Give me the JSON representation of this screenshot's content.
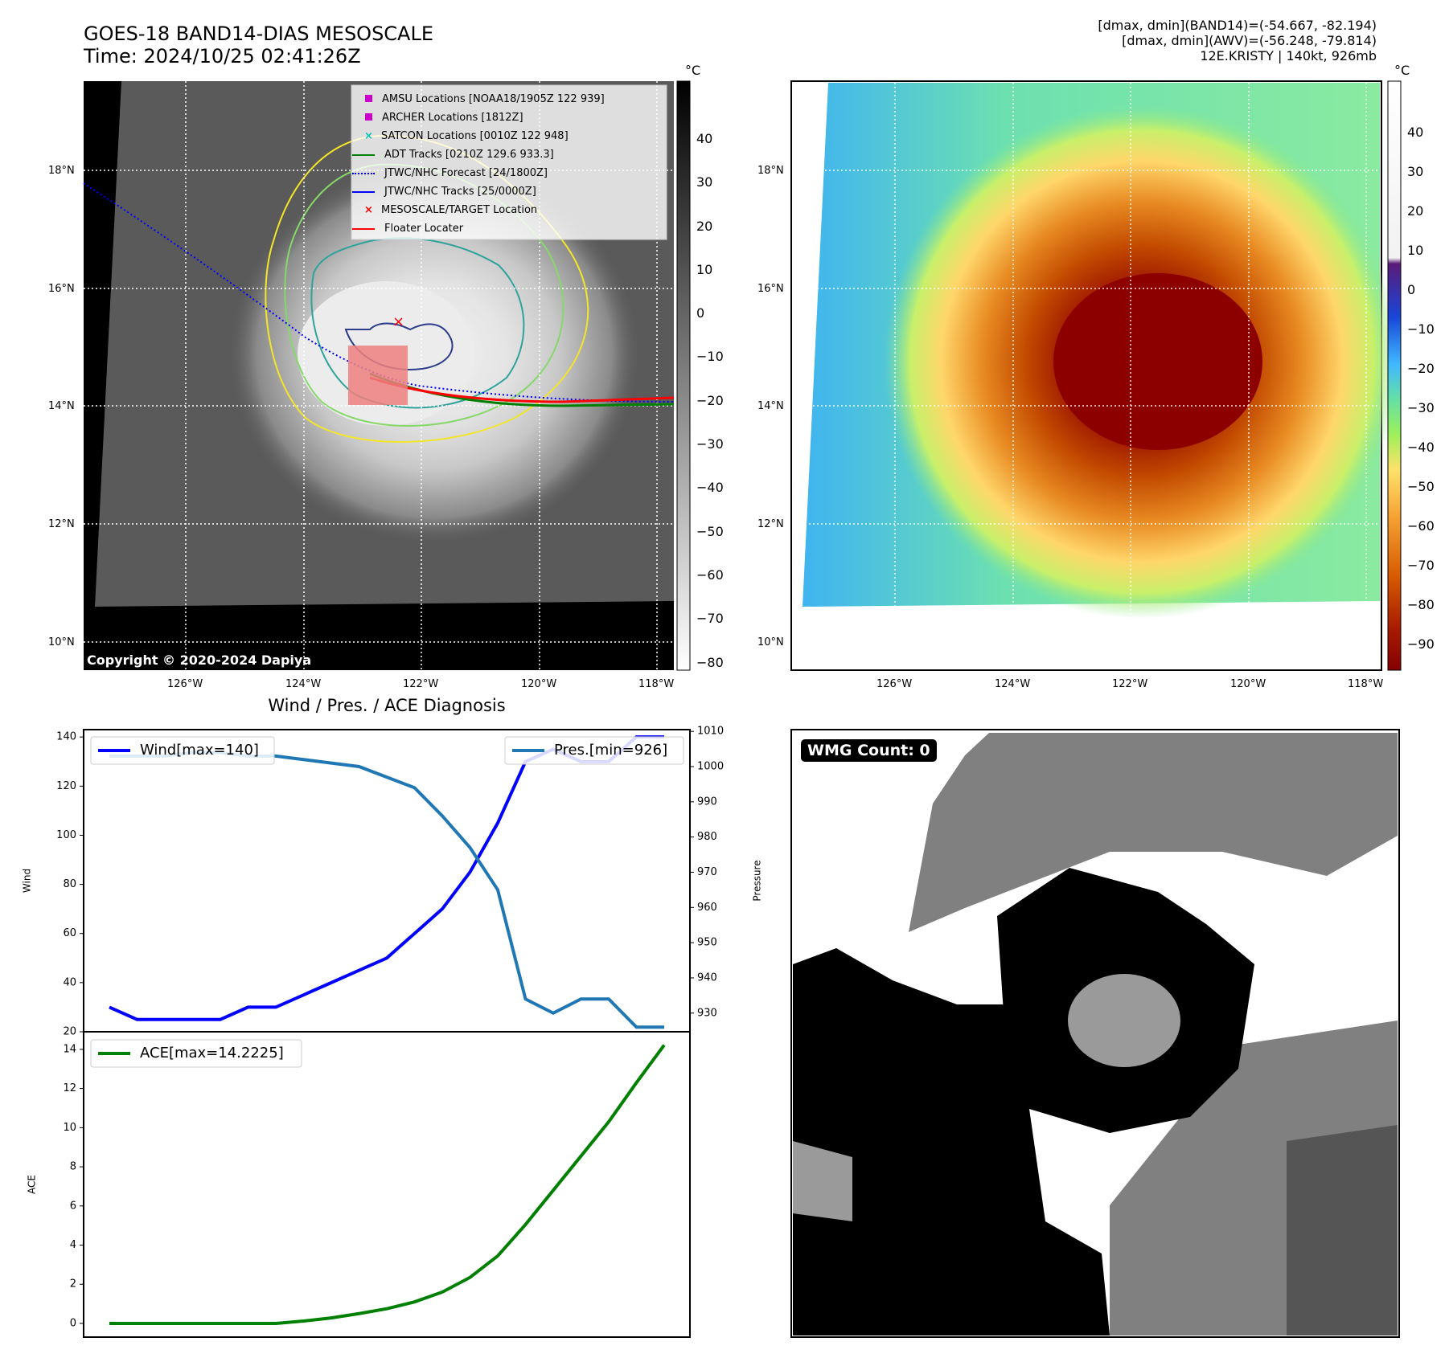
{
  "header": {
    "title_line1": "GOES-18 BAND14-DIAS MESOSCALE",
    "title_line2": "Time: 2024/10/25 02:41:26Z",
    "info_line1": "[dmax, dmin](BAND14)=(-54.667, -82.194)",
    "info_line2": "[dmax, dmin](AWV)=(-56.248, -79.814)",
    "info_line3": "12E.KRISTY | 140kt, 926mb"
  },
  "map": {
    "lat_labels": [
      "18°N",
      "16°N",
      "14°N",
      "12°N",
      "10°N"
    ],
    "lon_labels": [
      "126°W",
      "124°W",
      "122°W",
      "120°W",
      "118°W"
    ],
    "copyright": "Copyright © 2020-2024 Dapiya",
    "unit": "°C",
    "gray_ticks": [
      "40",
      "30",
      "20",
      "10",
      "0",
      "−10",
      "−20",
      "−30",
      "−40",
      "−50",
      "−60",
      "−70",
      "−80"
    ],
    "color_ticks": [
      "40",
      "30",
      "20",
      "10",
      "0",
      "−10",
      "−20",
      "−30",
      "−40",
      "−50",
      "−60",
      "−70",
      "−80",
      "−90"
    ],
    "legend": [
      {
        "label": "AMSU Locations [NOAA18/1905Z 122 939]",
        "marker": "square",
        "color": "#cc00cc"
      },
      {
        "label": "ARCHER Locations [1812Z]",
        "marker": "square",
        "color": "#cc00cc"
      },
      {
        "label": "SATCON Locations [0010Z 122 948]",
        "marker": "x",
        "color": "#00bfbf"
      },
      {
        "label": "ADT Tracks [0210Z 129.6 933.3]",
        "marker": "line",
        "color": "#008000"
      },
      {
        "label": "JTWC/NHC Forecast [24/1800Z]",
        "marker": "dotted",
        "color": "#0000ff"
      },
      {
        "label": "JTWC/NHC Tracks [25/0000Z]",
        "marker": "linedot",
        "color": "#0000ff"
      },
      {
        "label": "MESOSCALE/TARGET Location",
        "marker": "x",
        "color": "#ff0000"
      },
      {
        "label": "Floater Locater",
        "marker": "line",
        "color": "#ff0000"
      }
    ]
  },
  "wmg": {
    "label": "WMG Count: 0"
  },
  "chart_data": [
    {
      "type": "line",
      "title": "Wind / Pres. / ACE Diagnosis",
      "ylabel": "Wind",
      "ylabel_right": "Pressure",
      "ylim": [
        20,
        143
      ],
      "ylim_right": [
        924.7,
        1010.5
      ],
      "yticks": [
        20,
        40,
        60,
        80,
        100,
        120,
        140
      ],
      "yticks_right": [
        930,
        940,
        950,
        960,
        970,
        980,
        990,
        1000,
        1010
      ],
      "x": [
        0,
        1,
        2,
        3,
        4,
        5,
        6,
        7,
        8,
        9,
        10,
        11,
        12,
        13,
        14,
        15,
        16,
        17,
        18,
        19,
        20
      ],
      "series": [
        {
          "name": "Wind[max=140]",
          "axis": "left",
          "color": "#0000ff",
          "values": [
            30,
            25,
            25,
            25,
            25,
            30,
            30,
            35,
            40,
            45,
            50,
            60,
            70,
            85,
            105,
            130,
            135,
            130,
            130,
            140,
            140
          ]
        },
        {
          "name": "Pres.[min=926]",
          "axis": "right",
          "color": "#1f77b4",
          "values": [
            1003,
            1003,
            1003,
            1004,
            1004,
            1003,
            1003,
            1002,
            1001,
            1000,
            997,
            994,
            986,
            977,
            965,
            934,
            930,
            934,
            934,
            926,
            926
          ]
        }
      ]
    },
    {
      "type": "line",
      "ylabel": "ACE",
      "ylim": [
        -0.7,
        14.9
      ],
      "yticks": [
        0,
        2,
        4,
        6,
        8,
        10,
        12,
        14
      ],
      "x": [
        0,
        1,
        2,
        3,
        4,
        5,
        6,
        7,
        8,
        9,
        10,
        11,
        12,
        13,
        14,
        15,
        16,
        17,
        18,
        19,
        20
      ],
      "series": [
        {
          "name": "ACE[max=14.2225]",
          "color": "#008000",
          "values": [
            0,
            0,
            0,
            0,
            0,
            0,
            0,
            0.12,
            0.28,
            0.5,
            0.75,
            1.1,
            1.6,
            2.35,
            3.45,
            5.05,
            6.8,
            8.55,
            10.3,
            12.3,
            14.2225
          ]
        }
      ]
    }
  ]
}
